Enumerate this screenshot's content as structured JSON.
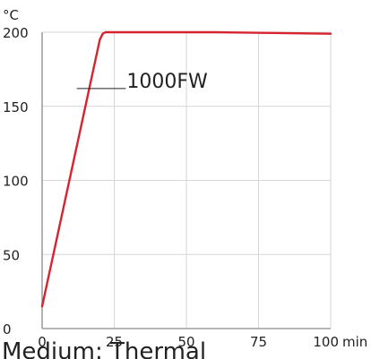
{
  "chart_data": {
    "type": "line",
    "x_unit": "min",
    "y_unit": "°C",
    "xlim": [
      0,
      100
    ],
    "ylim": [
      0,
      200
    ],
    "x_ticks": [
      0,
      25,
      50,
      75,
      100
    ],
    "y_ticks": [
      0,
      50,
      100,
      150,
      200
    ],
    "grid": true,
    "series": [
      {
        "name": "1000FW",
        "color": "#d7232f",
        "x": [
          0,
          20,
          21,
          22,
          40,
          60,
          80,
          100
        ],
        "y": [
          15,
          195,
          199,
          200,
          200,
          200,
          199.5,
          199
        ]
      }
    ]
  },
  "caption": "Medium: Thermal"
}
